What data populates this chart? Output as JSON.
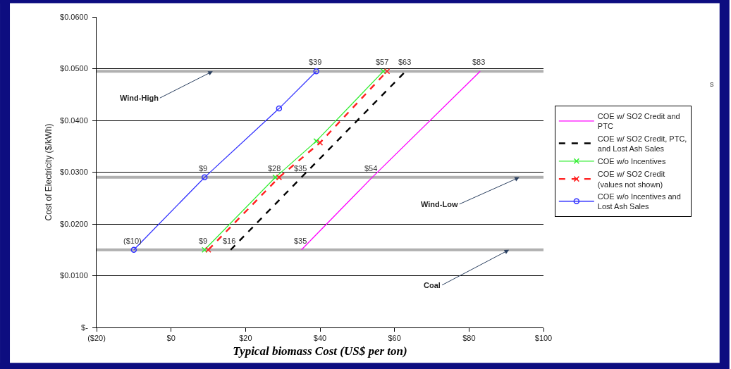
{
  "chart_data": {
    "type": "line",
    "xlabel": "Typical biomass Cost (US$ per ton)",
    "ylabel": "Cost of Electricity ($/kWh)",
    "xlim": [
      -20,
      100
    ],
    "xticks": [
      {
        "value": -20,
        "label": "($20)"
      },
      {
        "value": 0,
        "label": "$0"
      },
      {
        "value": 20,
        "label": "$20"
      },
      {
        "value": 40,
        "label": "$40"
      },
      {
        "value": 60,
        "label": "$60"
      },
      {
        "value": 80,
        "label": "$80"
      },
      {
        "value": 100,
        "label": "$100"
      }
    ],
    "ylim": [
      0,
      0.06
    ],
    "yticks": [
      {
        "value": 0,
        "label": "$-"
      },
      {
        "value": 0.01,
        "label": "$0.0100"
      },
      {
        "value": 0.02,
        "label": "$0.0200"
      },
      {
        "value": 0.03,
        "label": "$0.0300"
      },
      {
        "value": 0.04,
        "label": "$0.0400"
      },
      {
        "value": 0.05,
        "label": "$0.0500"
      },
      {
        "value": 0.06,
        "label": "$0.0600"
      }
    ],
    "grid": "y",
    "legend": "right",
    "series": [
      {
        "name": "COE w/ SO2 Credit and PTC",
        "color": "#ff00ff",
        "x": [
          35,
          54,
          83
        ],
        "values": [
          0.015,
          0.029,
          0.0495
        ],
        "marker": "none",
        "line_style": "solid"
      },
      {
        "name": "COE w/ SO2 Credit, PTC, and Lost Ash Sales",
        "color": "#000000",
        "x": [
          16,
          35,
          63
        ],
        "values": [
          0.015,
          0.029,
          0.0495
        ],
        "marker": "none",
        "line_style": "dashed"
      },
      {
        "name": "COE w/o Incentives",
        "color": "#33ee33",
        "x": [
          9,
          28,
          39,
          57
        ],
        "values": [
          0.015,
          0.029,
          0.036,
          0.0495
        ],
        "marker": "cross",
        "line_style": "solid"
      },
      {
        "name": "COE w/ SO2 Credit (values not shown)",
        "color": "#ff2020",
        "x": [
          10,
          29,
          40,
          58
        ],
        "values": [
          0.015,
          0.029,
          0.0357,
          0.0495
        ],
        "marker": "cross",
        "line_style": "dashed"
      },
      {
        "name": "COE w/o Incentives and Lost Ash Sales",
        "color": "#3030ff",
        "x": [
          -10,
          9,
          29,
          39
        ],
        "values": [
          0.015,
          0.029,
          0.0423,
          0.0495
        ],
        "marker": "circle",
        "line_style": "solid"
      }
    ],
    "ref_lines": [
      {
        "axis": "y",
        "value": 0.0495,
        "label": "Wind-High",
        "color": "#b0b0b0"
      },
      {
        "axis": "y",
        "value": 0.029,
        "label": "Wind-Low",
        "color": "#b0b0b0"
      },
      {
        "axis": "y",
        "value": 0.015,
        "label": "Coal",
        "color": "#b0b0b0"
      }
    ],
    "annotations": [
      {
        "text": "($10)",
        "x": -10,
        "y": 0.015
      },
      {
        "text": "$9",
        "x": 9,
        "y": 0.029
      },
      {
        "text": "$39",
        "x": 39,
        "y": 0.0495
      },
      {
        "text": "$9",
        "x": 9,
        "y": 0.015
      },
      {
        "text": "$16",
        "x": 16,
        "y": 0.015
      },
      {
        "text": "$28",
        "x": 28,
        "y": 0.029
      },
      {
        "text": "$35",
        "x": 35,
        "y": 0.029
      },
      {
        "text": "$57",
        "x": 57,
        "y": 0.0495
      },
      {
        "text": "$63",
        "x": 63,
        "y": 0.0495
      },
      {
        "text": "$83",
        "x": 83,
        "y": 0.0495
      },
      {
        "text": "$54",
        "x": 54,
        "y": 0.029
      },
      {
        "text": "$35",
        "x": 35,
        "y": 0.015
      },
      "s"
    ]
  }
}
